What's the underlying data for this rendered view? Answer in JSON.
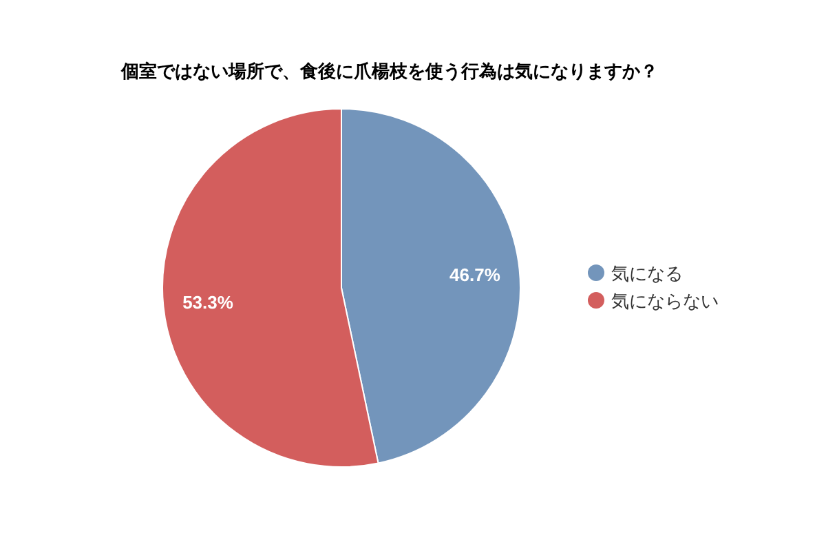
{
  "chart_data": {
    "type": "pie",
    "title": "個室ではない場所で、食後に爪楊枝を使う行為は気になりますか？",
    "categories": [
      "気になる",
      "気にならない"
    ],
    "values": [
      46.7,
      53.3
    ],
    "colors": [
      "#7395bb",
      "#d35e5d"
    ],
    "value_labels": [
      "46.7%",
      "53.3%"
    ],
    "legend": "right"
  }
}
